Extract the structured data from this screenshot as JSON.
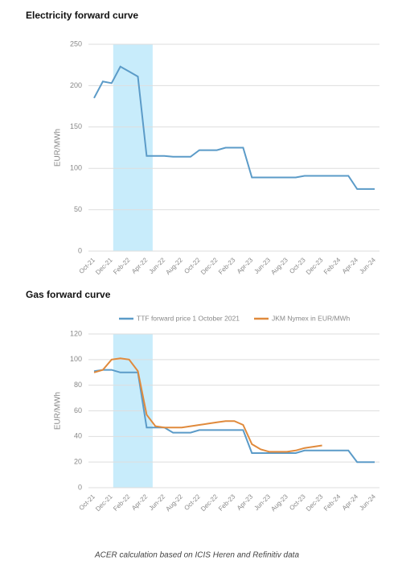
{
  "chart_data": [
    {
      "type": "line",
      "title": "Electricity forward curve",
      "ylabel": "EUR/MWh",
      "categories": [
        "Oct-21",
        null,
        "Dec-21",
        null,
        "Feb-22",
        null,
        "Apr-22",
        null,
        "Jun-22",
        null,
        "Aug-22",
        null,
        "Oct-22",
        null,
        "Dec-22",
        null,
        "Feb-23",
        null,
        "Apr-23",
        null,
        "Jun-23",
        null,
        "Aug-23",
        null,
        "Oct-23",
        null,
        "Dec-23",
        null,
        "Feb-24",
        null,
        "Apr-24",
        null,
        "Jun-24"
      ],
      "series": [
        {
          "name": null,
          "color": "#5b9bc8",
          "values": [
            185,
            205,
            203,
            223,
            217,
            211,
            115,
            115,
            115,
            114,
            114,
            114,
            122,
            122,
            122,
            125,
            125,
            125,
            89,
            89,
            89,
            89,
            89,
            89,
            91,
            91,
            91,
            91,
            91,
            91,
            75,
            75,
            75
          ]
        }
      ],
      "ylim": [
        0,
        250
      ],
      "yticks": [
        0,
        50,
        100,
        150,
        200,
        250
      ],
      "grid": true,
      "highlight": {
        "start": "Dec-21",
        "end": "Apr-22",
        "color": "#c8ecfb"
      },
      "legend": false
    },
    {
      "type": "line",
      "title": "Gas forward curve",
      "ylabel": "EUR/MWh",
      "categories": [
        "Oct-21",
        null,
        "Dec-21",
        null,
        "Feb-22",
        null,
        "Apr-22",
        null,
        "Jun-22",
        null,
        "Aug-22",
        null,
        "Oct-22",
        null,
        "Dec-22",
        null,
        "Feb-23",
        null,
        "Apr-23",
        null,
        "Jun-23",
        null,
        "Aug-23",
        null,
        "Oct-23",
        null,
        "Dec-23",
        null,
        "Feb-24",
        null,
        "Apr-24",
        null,
        "Jun-24"
      ],
      "series": [
        {
          "name": "TTF forward price 1 October 2021",
          "color": "#5b9bc8",
          "values": [
            91,
            92,
            92,
            90,
            90,
            90,
            47,
            47,
            47,
            43,
            43,
            43,
            45,
            45,
            45,
            45,
            45,
            45,
            27,
            27,
            27,
            27,
            27,
            27,
            29,
            29,
            29,
            29,
            29,
            29,
            20,
            20,
            20
          ]
        },
        {
          "name": "JKM Nymex in EUR/MWh",
          "color": "#e08a3c",
          "values": [
            90,
            92,
            100,
            101,
            100,
            91,
            57,
            48,
            47,
            47,
            47,
            48,
            49,
            50,
            51,
            52,
            52,
            49,
            34,
            30,
            28,
            28,
            28,
            29,
            31,
            32,
            33,
            null,
            null,
            null,
            null,
            null,
            null
          ]
        }
      ],
      "ylim": [
        0,
        120
      ],
      "yticks": [
        0,
        20,
        40,
        60,
        80,
        100,
        120
      ],
      "grid": true,
      "highlight": {
        "start": "Dec-21",
        "end": "Apr-22",
        "color": "#c8ecfb"
      },
      "legend": "top"
    }
  ],
  "footnote": "ACER calculation based on ICIS Heren and Refinitiv data"
}
